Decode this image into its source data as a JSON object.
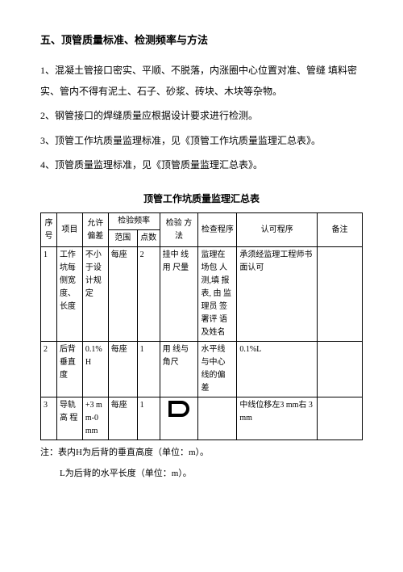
{
  "heading": "五、顶管质量标准、检测频率与方法",
  "paragraphs": [
    "1、混凝土管接口密实、平顺、不脱落，内涨圈中心位置对准、管缝 填料密实、管内不得有泥土、石子、砂浆、砖块、木块等杂物。",
    "2、钢管接口的焊缝质量应根据设计要求进行检测。",
    "3、顶管工作坑质量监理标准，见《顶管工作坑质量监理汇总表》。",
    "4、顶管质量监理标准，见《顶管质量监理汇总表》。"
  ],
  "table_title": "顶管工作坑质量监理汇总表",
  "headers": {
    "seq": "序号",
    "item": "项目",
    "deviation": "允许偏差",
    "freq": "检验频率",
    "scope": "范围",
    "points": "点数",
    "method": "检验 方法",
    "proc": "检查程序",
    "approve": "认可程序",
    "remark": "备注"
  },
  "rows": [
    {
      "seq": "1",
      "item": "工作坑每侧宽度、长度",
      "deviation": "不小于设计规定",
      "scope": "每座",
      "points": "2",
      "method": "挂中 线用 尺量",
      "proc": "监理在 场包 人测,填 报表, 由 监理员 签署评 语及姓名",
      "approve": "承须经监理工程师书面认可",
      "remark": ""
    },
    {
      "seq": "2",
      "item": "后背垂直度",
      "deviation": "0.1%H",
      "scope": "每座",
      "points": "1",
      "method": "用 线与 角尺",
      "proc": "水平线 与中心 线的偏 差",
      "approve": "0.1%L",
      "remark": ""
    },
    {
      "seq": "3",
      "item": "导轨高 程",
      "deviation": "+3 mm-0 mm",
      "scope": "每座",
      "points": "1",
      "method": "",
      "proc": "",
      "approve": "中线位移左3 mm右 3 mm",
      "remark": ""
    }
  ],
  "notes": {
    "line1": "注：表内H为后背的垂直高度（单位：m）。",
    "line2": "L为后背的水平长度（单位：m）。"
  },
  "colors": {
    "text": "#000000",
    "background": "#ffffff",
    "border": "#000000"
  }
}
